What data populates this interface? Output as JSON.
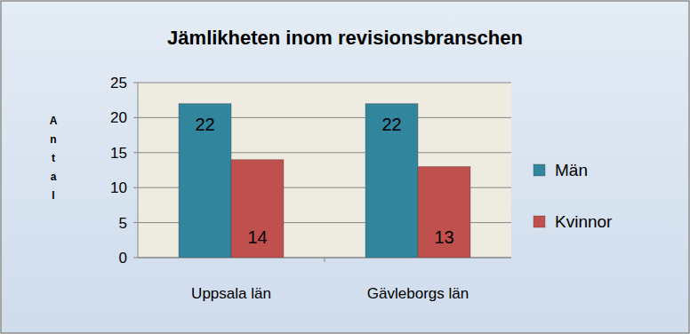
{
  "chart_data": {
    "type": "bar",
    "title": "Jämlikheten inom revisionsbranschen",
    "y_label": "Antal",
    "categories": [
      "Uppsala län",
      "Gävleborgs län"
    ],
    "series": [
      {
        "name": "Män",
        "color": "#31859c",
        "values": [
          22,
          22
        ]
      },
      {
        "name": "Kvinnor",
        "color": "#c0504d",
        "values": [
          14,
          13
        ]
      }
    ],
    "ylim": [
      0,
      25
    ],
    "yticks": [
      0,
      5,
      10,
      15,
      20,
      25
    ],
    "grid": true,
    "legend": "right",
    "data_labels": true
  }
}
